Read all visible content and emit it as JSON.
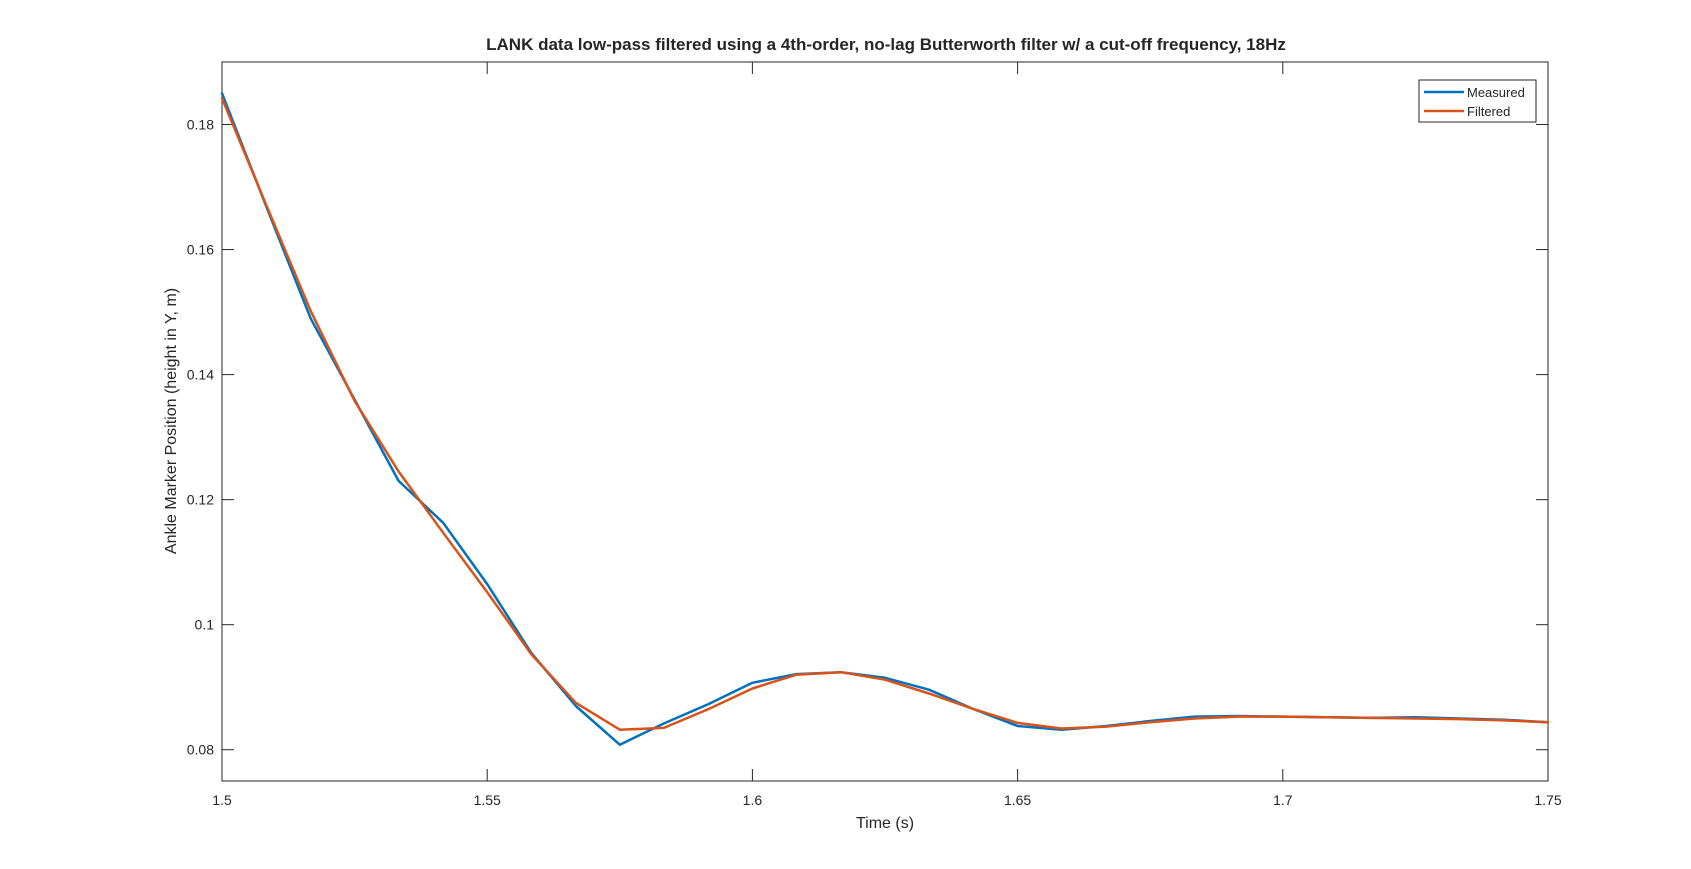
{
  "chart_data": {
    "type": "line",
    "title": "LANK data low-pass filtered using a 4th-order, no-lag Butterworth filter w/ a cut-off frequency, 18Hz",
    "xlabel": "Time (s)",
    "ylabel": "Ankle Marker Position (height in Y, m)",
    "xlim": [
      1.5,
      1.75
    ],
    "ylim": [
      0.075,
      0.19
    ],
    "xticks": [
      1.5,
      1.55,
      1.6,
      1.65,
      1.7,
      1.75
    ],
    "xtick_labels": [
      "1.5",
      "1.55",
      "1.6",
      "1.65",
      "1.7",
      "1.75"
    ],
    "yticks": [
      0.08,
      0.1,
      0.12,
      0.14,
      0.16,
      0.18
    ],
    "ytick_labels": [
      "0.08",
      "0.1",
      "0.12",
      "0.14",
      "0.16",
      "0.18"
    ],
    "grid": false,
    "legend": "top-right",
    "x": [
      1.5,
      1.5083,
      1.5167,
      1.525,
      1.5333,
      1.5417,
      1.55,
      1.5583,
      1.5667,
      1.575,
      1.5833,
      1.5917,
      1.6,
      1.6083,
      1.6167,
      1.625,
      1.6333,
      1.6417,
      1.65,
      1.6583,
      1.6667,
      1.675,
      1.6833,
      1.6917,
      1.7,
      1.7083,
      1.7167,
      1.725,
      1.7333,
      1.7417,
      1.75
    ],
    "series": [
      {
        "name": "Measured",
        "color": "#0072BD",
        "values": [
          0.185,
          0.167,
          0.149,
          0.136,
          0.123,
          0.1163,
          0.1065,
          0.0955,
          0.087,
          0.0808,
          0.0842,
          0.0873,
          0.0907,
          0.0921,
          0.0924,
          0.0915,
          0.0896,
          0.0865,
          0.0838,
          0.0832,
          0.0838,
          0.0846,
          0.0853,
          0.0854,
          0.0853,
          0.0852,
          0.0851,
          0.0852,
          0.085,
          0.0848,
          0.0844
        ]
      },
      {
        "name": "Filtered",
        "color": "#D95319",
        "values": [
          0.1842,
          0.1672,
          0.1502,
          0.1358,
          0.1245,
          0.1147,
          0.1052,
          0.0953,
          0.0875,
          0.0832,
          0.0835,
          0.0865,
          0.0898,
          0.092,
          0.0924,
          0.0912,
          0.089,
          0.0865,
          0.0843,
          0.0834,
          0.0837,
          0.0844,
          0.085,
          0.0853,
          0.0853,
          0.0852,
          0.0851,
          0.085,
          0.0849,
          0.0847,
          0.0844
        ]
      }
    ]
  }
}
